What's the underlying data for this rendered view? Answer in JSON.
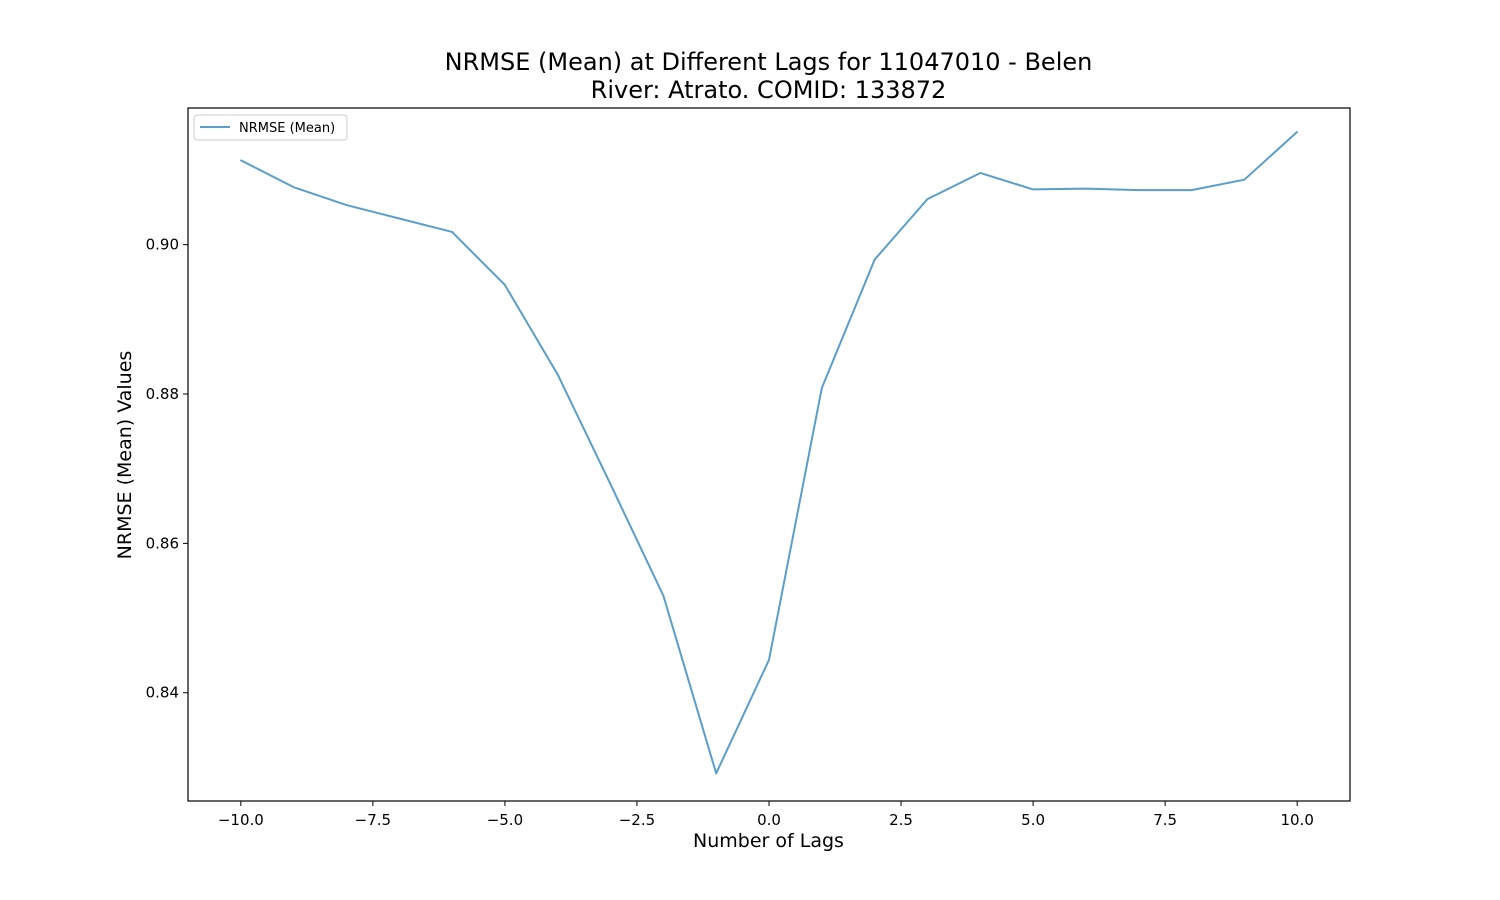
{
  "chart_data": {
    "type": "line",
    "title": "NRMSE (Mean) at Different Lags for 11047010 - Belen",
    "subtitle": "River: Atrato. COMID: 133872",
    "xlabel": "Number of Lags",
    "ylabel": "NRMSE (Mean) Values",
    "xlim": [
      -11,
      11
    ],
    "ylim": [
      0.8255,
      0.9183
    ],
    "xticks": [
      -10.0,
      -7.5,
      -5.0,
      -2.5,
      0.0,
      2.5,
      5.0,
      7.5,
      10.0
    ],
    "xtick_labels": [
      "−10.0",
      "−7.5",
      "−5.0",
      "−2.5",
      "0.0",
      "2.5",
      "5.0",
      "7.5",
      "10.0"
    ],
    "yticks": [
      0.84,
      0.86,
      0.88,
      0.9
    ],
    "ytick_labels": [
      "0.84",
      "0.86",
      "0.88",
      "0.90"
    ],
    "grid": false,
    "legend": "upper-left",
    "series": [
      {
        "name": "NRMSE (Mean)",
        "color": "#5b9ec9",
        "x": [
          -10,
          -9,
          -8,
          -7,
          -6,
          -5,
          -4,
          -3,
          -2,
          -1,
          0,
          1,
          2,
          3,
          4,
          5,
          6,
          7,
          8,
          9,
          10
        ],
        "y": [
          0.9113,
          0.9077,
          0.9053,
          0.9035,
          0.9017,
          0.8946,
          0.8826,
          0.8679,
          0.853,
          0.8292,
          0.8444,
          0.8808,
          0.898,
          0.9061,
          0.9096,
          0.9074,
          0.9075,
          0.9073,
          0.9073,
          0.9087,
          0.9151
        ]
      }
    ]
  }
}
